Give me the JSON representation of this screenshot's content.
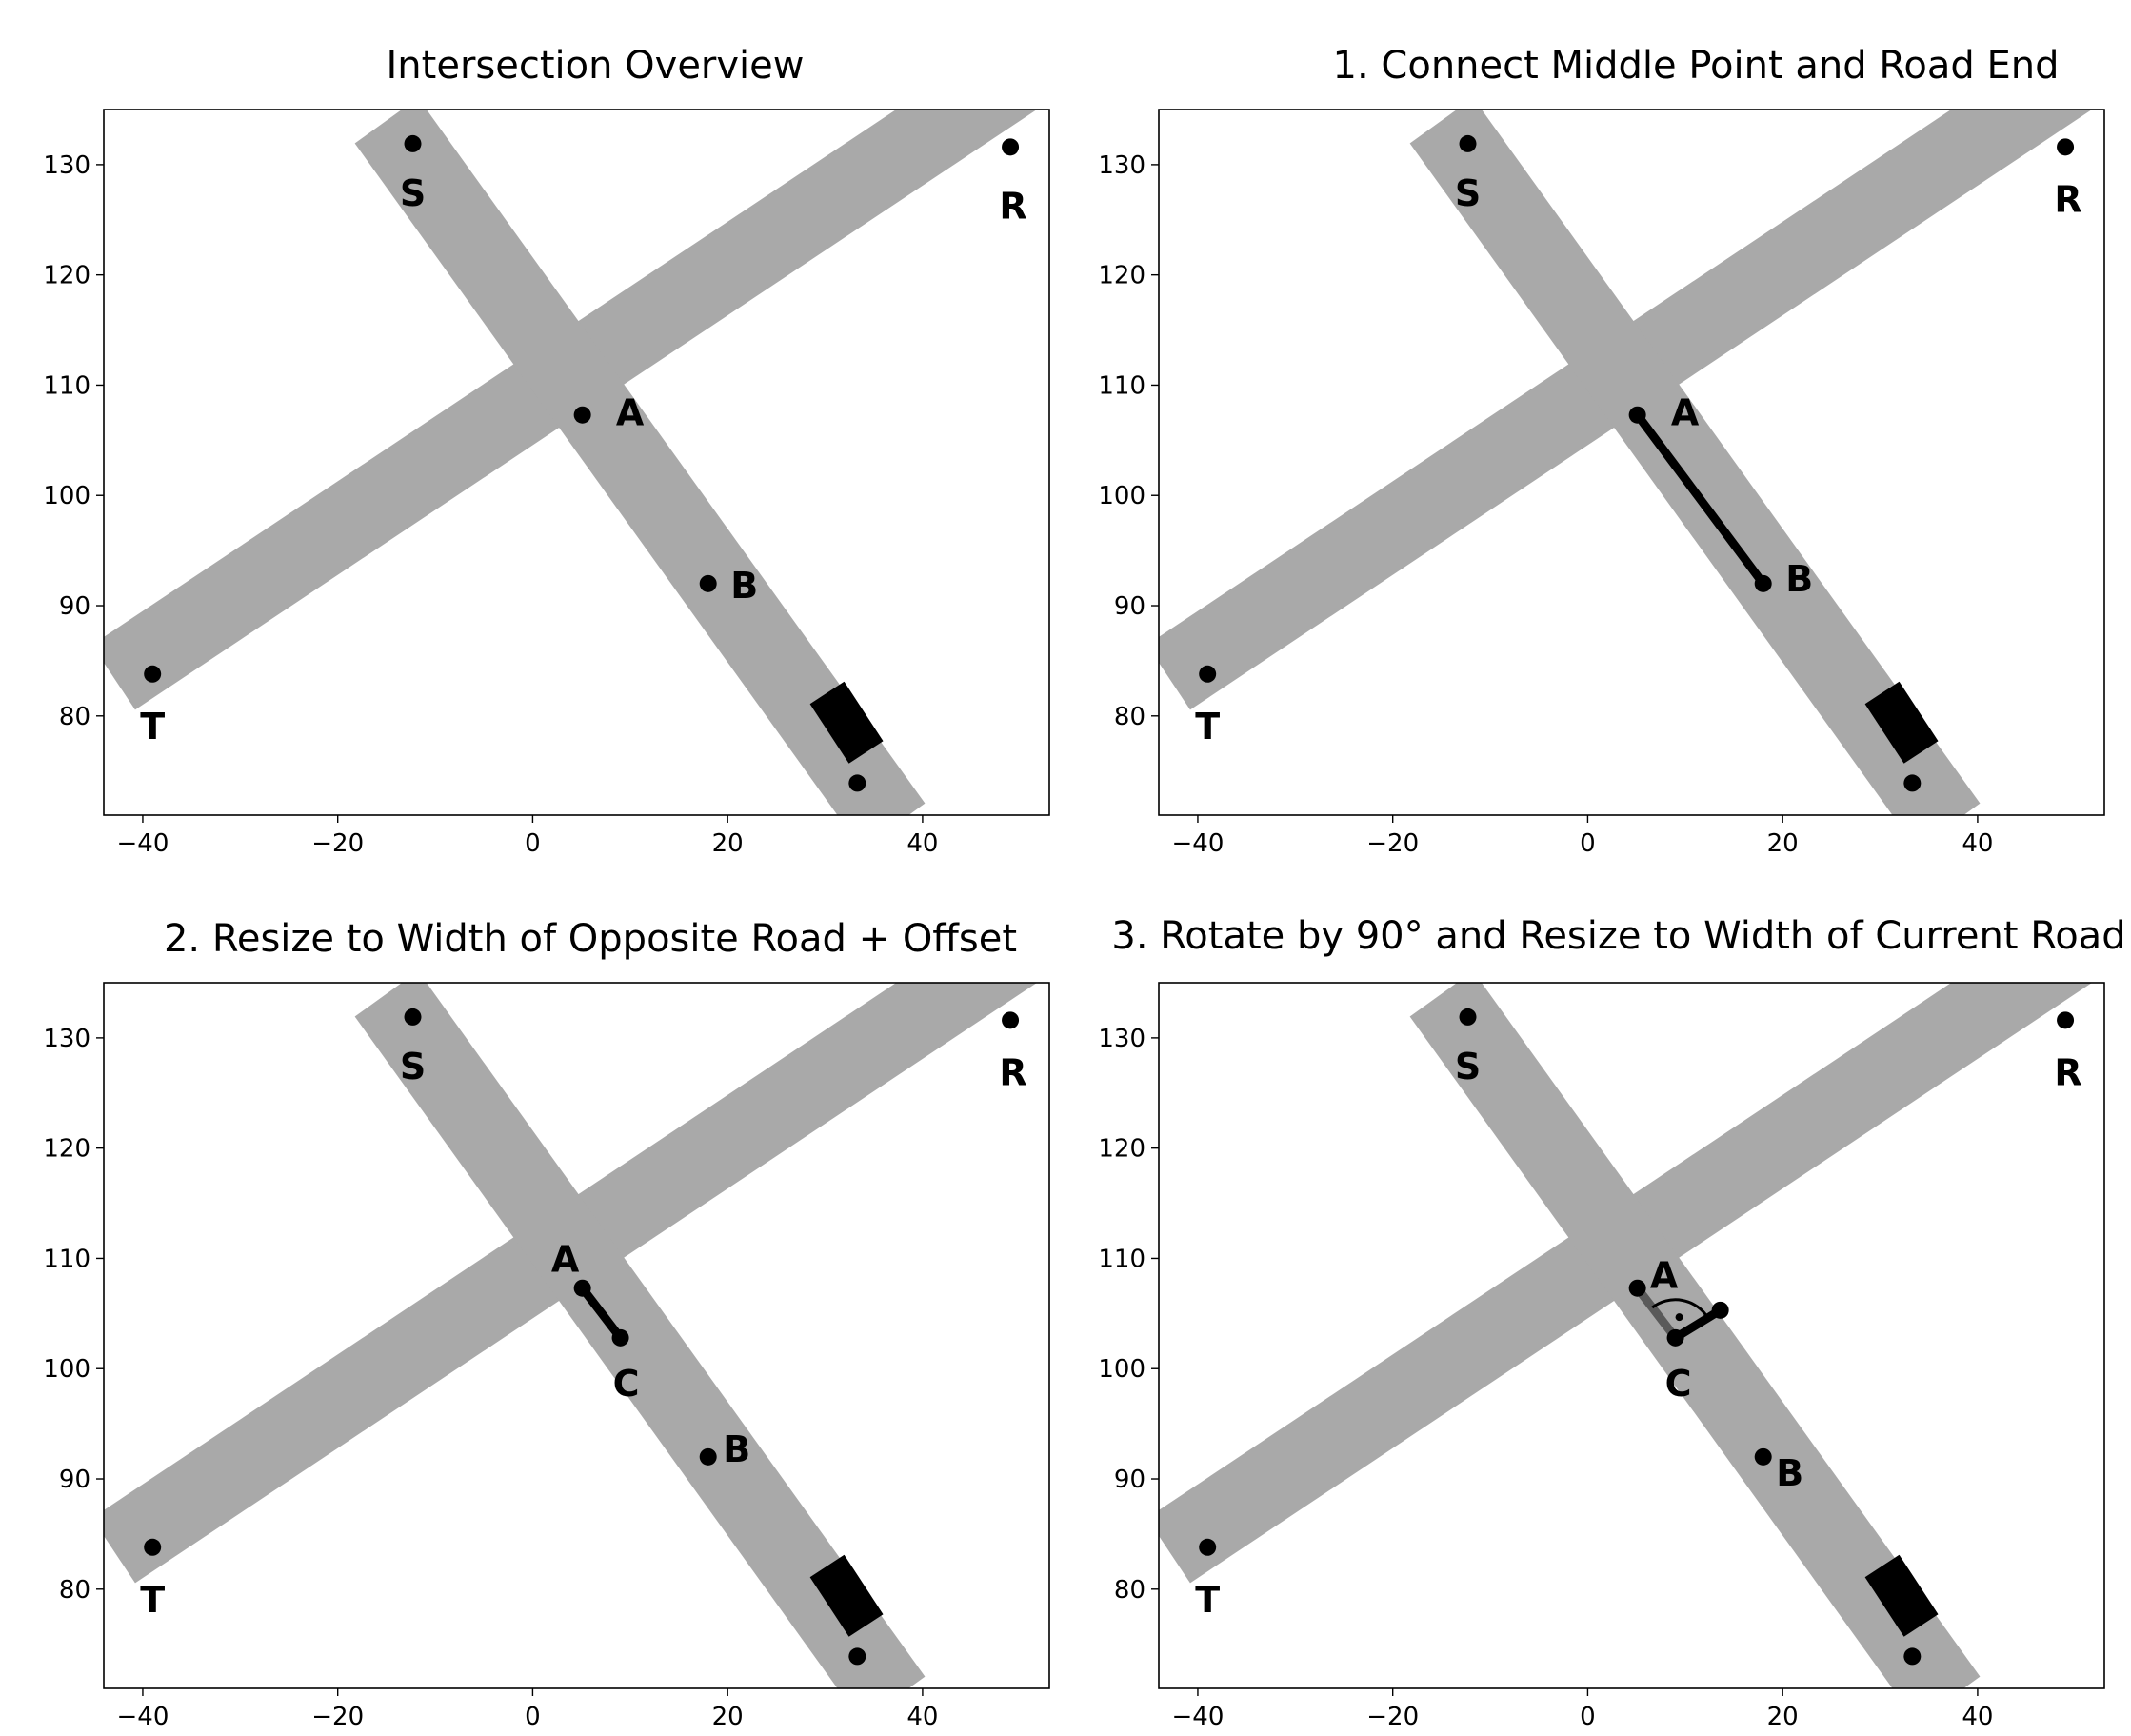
{
  "chart_data": [
    {
      "type": "scatter",
      "title": "Intersection Overview",
      "xlabel": "",
      "ylabel": "",
      "xlim": [
        -44,
        53
      ],
      "ylim": [
        71,
        135
      ],
      "xticks": [
        -40,
        -20,
        0,
        20,
        40
      ],
      "yticks": [
        80,
        90,
        100,
        110,
        120,
        130
      ],
      "roads": [
        {
          "name": "",
          "from": [
            -43,
            83.5
          ],
          "to": [
            53,
            140
          ],
          "width": 8,
          "color": "#a9a9a9"
        },
        {
          "name": "",
          "from": [
            -15,
            134
          ],
          "to": [
            37,
            70
          ],
          "width": 8,
          "color": "#a9a9a9"
        }
      ],
      "vehicle": {
        "from": [
          30.2,
          82.1
        ],
        "to": [
          34.2,
          76.7
        ],
        "width": 4.2,
        "color": "#000000"
      },
      "points": [
        {
          "label": "S",
          "x": -12.3,
          "y": 131.9
        },
        {
          "label": "R",
          "x": 49,
          "y": 131.6
        },
        {
          "label": "A",
          "x": 5.1,
          "y": 107.3
        },
        {
          "label": "B",
          "x": 18,
          "y": 92
        },
        {
          "label": "T",
          "x": -39,
          "y": 83.8
        },
        {
          "label": "",
          "x": 33.3,
          "y": 73.9
        }
      ],
      "segments": [],
      "right_angle_marker": false
    },
    {
      "type": "scatter",
      "title": "1. Connect Middle Point and Road End",
      "xlabel": "",
      "ylabel": "",
      "xlim": [
        -44,
        53
      ],
      "ylim": [
        71,
        135
      ],
      "xticks": [
        -40,
        -20,
        0,
        20,
        40
      ],
      "yticks": [
        80,
        90,
        100,
        110,
        120,
        130
      ],
      "roads": [
        {
          "name": "",
          "from": [
            -43,
            83.5
          ],
          "to": [
            53,
            140
          ],
          "width": 8,
          "color": "#a9a9a9"
        },
        {
          "name": "",
          "from": [
            -15,
            134
          ],
          "to": [
            37,
            70
          ],
          "width": 8,
          "color": "#a9a9a9"
        }
      ],
      "vehicle": {
        "from": [
          30.2,
          82.1
        ],
        "to": [
          34.2,
          76.7
        ],
        "width": 4.2,
        "color": "#000000"
      },
      "points": [
        {
          "label": "S",
          "x": -12.3,
          "y": 131.9
        },
        {
          "label": "R",
          "x": 49,
          "y": 131.6
        },
        {
          "label": "A",
          "x": 5.1,
          "y": 107.3
        },
        {
          "label": "B",
          "x": 18,
          "y": 92
        },
        {
          "label": "T",
          "x": -39,
          "y": 83.8
        },
        {
          "label": "",
          "x": 33.3,
          "y": 73.9
        }
      ],
      "segments": [
        {
          "from": [
            5.1,
            107.3
          ],
          "to": [
            18,
            92
          ],
          "color": "#000000"
        }
      ],
      "right_angle_marker": false
    },
    {
      "type": "scatter",
      "title": "2. Resize to Width of Opposite Road + Offset",
      "xlabel": "",
      "ylabel": "",
      "xlim": [
        -44,
        53
      ],
      "ylim": [
        71,
        135
      ],
      "xticks": [
        -40,
        -20,
        0,
        20,
        40
      ],
      "yticks": [
        80,
        90,
        100,
        110,
        120,
        130
      ],
      "roads": [
        {
          "name": "",
          "from": [
            -43,
            83.5
          ],
          "to": [
            53,
            140
          ],
          "width": 8,
          "color": "#a9a9a9"
        },
        {
          "name": "",
          "from": [
            -15,
            134
          ],
          "to": [
            37,
            70
          ],
          "width": 8,
          "color": "#a9a9a9"
        }
      ],
      "vehicle": {
        "from": [
          30.2,
          82.1
        ],
        "to": [
          34.2,
          76.7
        ],
        "width": 4.2,
        "color": "#000000"
      },
      "points": [
        {
          "label": "S",
          "x": -12.3,
          "y": 131.9
        },
        {
          "label": "R",
          "x": 49,
          "y": 131.6
        },
        {
          "label": "A",
          "x": 5.1,
          "y": 107.3
        },
        {
          "label": "C",
          "x": 9,
          "y": 102.8
        },
        {
          "label": "B",
          "x": 18,
          "y": 92
        },
        {
          "label": "T",
          "x": -39,
          "y": 83.8
        },
        {
          "label": "",
          "x": 33.3,
          "y": 73.9
        }
      ],
      "segments": [
        {
          "from": [
            5.1,
            107.3
          ],
          "to": [
            9,
            102.8
          ],
          "color": "#000000"
        }
      ],
      "right_angle_marker": false
    },
    {
      "type": "scatter",
      "title": "3. Rotate by 90° and Resize to Width of Current Road",
      "xlabel": "",
      "ylabel": "",
      "xlim": [
        -44,
        53
      ],
      "ylim": [
        71,
        135
      ],
      "xticks": [
        -40,
        -20,
        0,
        20,
        40
      ],
      "yticks": [
        80,
        90,
        100,
        110,
        120,
        130
      ],
      "roads": [
        {
          "name": "",
          "from": [
            -43,
            83.5
          ],
          "to": [
            53,
            140
          ],
          "width": 8,
          "color": "#a9a9a9"
        },
        {
          "name": "",
          "from": [
            -15,
            134
          ],
          "to": [
            37,
            70
          ],
          "width": 8,
          "color": "#a9a9a9"
        }
      ],
      "vehicle": {
        "from": [
          30.2,
          82.1
        ],
        "to": [
          34.2,
          76.7
        ],
        "width": 4.2,
        "color": "#000000"
      },
      "points": [
        {
          "label": "S",
          "x": -12.3,
          "y": 131.9
        },
        {
          "label": "R",
          "x": 49,
          "y": 131.6
        },
        {
          "label": "A",
          "x": 5.1,
          "y": 107.3
        },
        {
          "label": "C",
          "x": 9,
          "y": 102.8
        },
        {
          "label": "",
          "x": 13.6,
          "y": 105.3
        },
        {
          "label": "B",
          "x": 18,
          "y": 92
        },
        {
          "label": "T",
          "x": -39,
          "y": 83.8
        },
        {
          "label": "",
          "x": 33.3,
          "y": 73.9
        }
      ],
      "segments": [
        {
          "from": [
            5.1,
            107.3
          ],
          "to": [
            9,
            102.8
          ],
          "color": "#5a5a5a"
        },
        {
          "from": [
            9,
            102.8
          ],
          "to": [
            13.6,
            105.3
          ],
          "color": "#000000"
        }
      ],
      "right_angle_marker": true
    }
  ]
}
